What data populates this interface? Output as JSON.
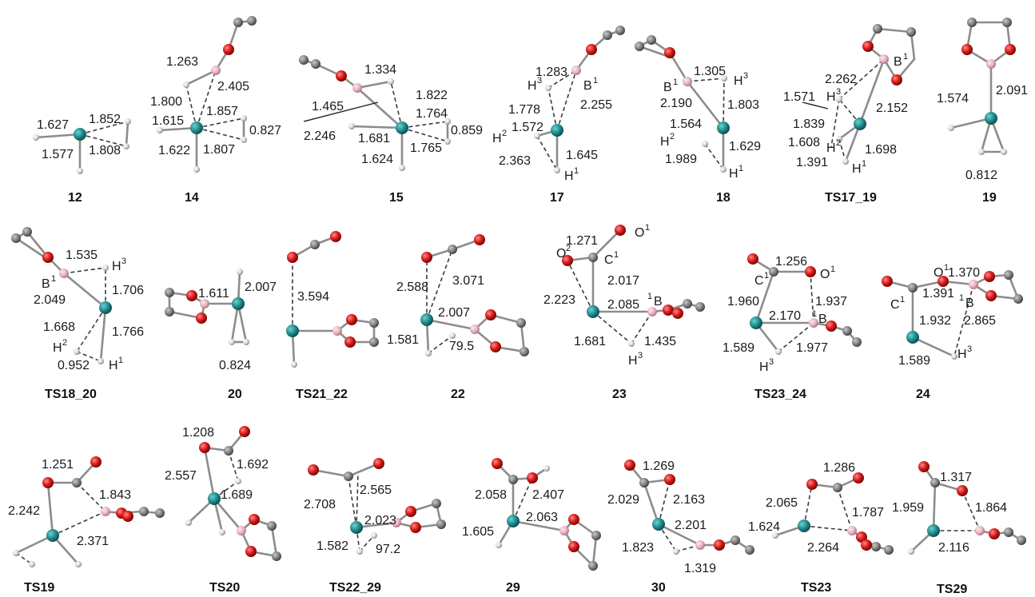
{
  "colors": {
    "metal": "#1e8a8a",
    "boron": "#e8b4c0",
    "oxygen": "#d81c1c",
    "carbon": "#808080",
    "hydrogen": "#d8d8d8",
    "bond": "#8c8c8c"
  },
  "structures": [
    {
      "id": "s12",
      "name": "12",
      "values": [
        "1.627",
        "1.852",
        "1.577",
        "1.808"
      ]
    },
    {
      "id": "s14",
      "name": "14",
      "values": [
        "1.263",
        "2.405",
        "1.800",
        "1.857",
        "1.615",
        "0.827",
        "1.622",
        "1.807"
      ]
    },
    {
      "id": "s15",
      "name": "15",
      "values": [
        "1.334",
        "1.822",
        "1.465",
        "1.764",
        "0.859",
        "2.246",
        "1.681",
        "1.765",
        "1.624"
      ]
    },
    {
      "id": "s17",
      "name": "17",
      "values": [
        "1.283",
        "2.255",
        "1.778",
        "1.572",
        "2.363",
        "1.645"
      ]
    },
    {
      "id": "s18",
      "name": "18",
      "values": [
        "1.305",
        "2.190",
        "1.803",
        "1.564",
        "1.629",
        "1.989"
      ]
    },
    {
      "id": "sTS17_19",
      "name": "TS17_19",
      "values": [
        "2.262",
        "1.571",
        "2.152",
        "1.839",
        "1.608",
        "1.698",
        "1.391"
      ]
    },
    {
      "id": "s19",
      "name": "19",
      "values": [
        "1.574",
        "2.091",
        "0.812"
      ]
    },
    {
      "id": "sTS18_20",
      "name": "TS18_20",
      "values": [
        "1.535",
        "1.706",
        "2.049",
        "1.668",
        "1.766",
        "0.952"
      ]
    },
    {
      "id": "s20",
      "name": "20",
      "values": [
        "1.611",
        "2.007",
        "0.824"
      ]
    },
    {
      "id": "sTS21_22",
      "name": "TS21_22",
      "values": [
        "3.594"
      ]
    },
    {
      "id": "s22",
      "name": "22",
      "values": [
        "2.588",
        "3.071",
        "2.007",
        "1.581",
        "79.5"
      ]
    },
    {
      "id": "s23",
      "name": "23",
      "values": [
        "1.271",
        "2.017",
        "2.223",
        "2.085",
        "1.681",
        "1.435"
      ]
    },
    {
      "id": "sTS23_24",
      "name": "TS23_24",
      "values": [
        "1.256",
        "1.960",
        "1.937",
        "2.170",
        "1.589",
        "1.977"
      ]
    },
    {
      "id": "s24",
      "name": "24",
      "values": [
        "1.370",
        "1.391",
        "1.932",
        "2.865",
        "1.589"
      ]
    },
    {
      "id": "sTS19",
      "name": "TS19",
      "values": [
        "1.251",
        "1.843",
        "2.242",
        "2.371"
      ]
    },
    {
      "id": "sTS20",
      "name": "TS20",
      "values": [
        "1.208",
        "1.692",
        "2.557",
        "1.689"
      ]
    },
    {
      "id": "sTS22_29",
      "name": "TS22_29",
      "values": [
        "2.708",
        "2.565",
        "2.023",
        "1.582",
        "97.2"
      ]
    },
    {
      "id": "s29",
      "name": "29",
      "values": [
        "2.058",
        "2.407",
        "2.063",
        "1.605"
      ]
    },
    {
      "id": "s30",
      "name": "30",
      "values": [
        "1.269",
        "2.029",
        "2.163",
        "2.201",
        "1.823",
        "1.319"
      ]
    },
    {
      "id": "sTS23",
      "name": "TS23",
      "values": [
        "1.286",
        "2.065",
        "1.787",
        "1.624",
        "2.264"
      ]
    },
    {
      "id": "sTS29",
      "name": "TS29",
      "values": [
        "1.317",
        "1.959",
        "1.864",
        "2.116"
      ]
    }
  ],
  "atom_labels": {
    "H": "H",
    "B": "B",
    "O": "O",
    "C": "C",
    "sup1": "1",
    "sup2": "2",
    "sup3": "3"
  }
}
